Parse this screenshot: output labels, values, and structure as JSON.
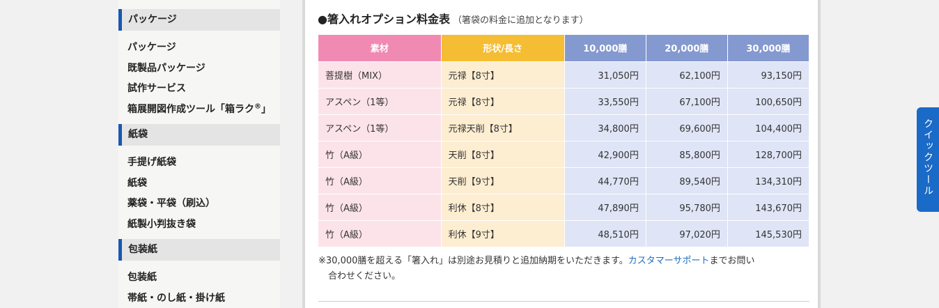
{
  "sidebar": {
    "sections": [
      {
        "title": "パッケージ",
        "items": [
          "パッケージ",
          "既製品パッケージ",
          "試作サービス",
          "箱展開図作成ツール「箱ラク"
        ]
      },
      {
        "title": "紙袋",
        "items": [
          "手提げ紙袋",
          "紙袋",
          "薬袋・平袋（刷込）",
          "紙製小判抜き袋"
        ]
      },
      {
        "title": "包装紙",
        "items": [
          "包装紙",
          "帯紙・のし紙・掛け紙"
        ]
      }
    ],
    "trademark": "®",
    "trademark_close": "」"
  },
  "main": {
    "title": "●箸入れオプション料金表",
    "title_note": "（箸袋の料金に追加となります）",
    "table": {
      "headers": [
        "素材",
        "形状/長さ",
        "10,000膳",
        "20,000膳",
        "30,000膳"
      ],
      "rows": [
        [
          "菩提樹（MIX）",
          "元禄【8寸】",
          "31,050円",
          "62,100円",
          "93,150円"
        ],
        [
          "アスペン（1等）",
          "元禄【8寸】",
          "33,550円",
          "67,100円",
          "100,650円"
        ],
        [
          "アスペン（1等）",
          "元禄天削【8寸】",
          "34,800円",
          "69,600円",
          "104,400円"
        ],
        [
          "竹（A級）",
          "天削【8寸】",
          "42,900円",
          "85,800円",
          "128,700円"
        ],
        [
          "竹（A級）",
          "天削【9寸】",
          "44,770円",
          "89,540円",
          "134,310円"
        ],
        [
          "竹（A級）",
          "利休【8寸】",
          "47,890円",
          "95,780円",
          "143,670円"
        ],
        [
          "竹（A級）",
          "利休【9寸】",
          "48,510円",
          "97,020円",
          "145,530円"
        ]
      ]
    },
    "footnote": {
      "before": "※30,000膳を超える「箸入れ」は別途お見積りと追加納期をいただきます。",
      "link": "カスタマーサポート",
      "after": "までお問い",
      "line2": "合わせください。"
    }
  },
  "quick_tool": {
    "label": "クイックツール"
  },
  "colors": {
    "accent": "#1a56b2",
    "header_material": "#f08ab3",
    "header_shape": "#f5bd33",
    "header_quantity": "#8499d0",
    "cell_material": "#fce3ea",
    "cell_shape": "#fdedd1",
    "cell_price": "#dfe4f6",
    "link": "#1f6fbf",
    "quick_tool_bg": "#1a6ac7"
  }
}
